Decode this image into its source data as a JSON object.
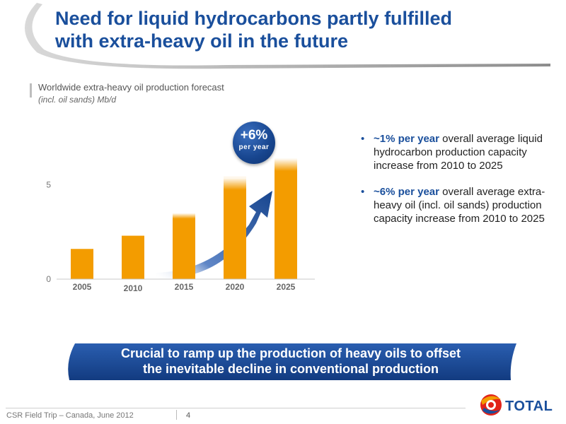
{
  "header": {
    "title_line1": "Need for liquid hydrocarbons partly fulfilled",
    "title_line2": "with extra-heavy oil in the future"
  },
  "chart_data": {
    "type": "bar",
    "title": "Worldwide extra-heavy oil production forecast",
    "subtitle": "(incl. oil sands) Mb/d",
    "categories": [
      "2005",
      "2010",
      "2015",
      "2020",
      "2025"
    ],
    "values": [
      1.6,
      2.3,
      3.5,
      5.4,
      6.4
    ],
    "y_ticks": [
      "0",
      "5"
    ],
    "ylim": [
      0,
      7
    ],
    "grid": false,
    "bar_color": "#f39c00",
    "annotation": {
      "value": "+6%",
      "unit": "per year",
      "color": "#1a4f9c"
    }
  },
  "bullets": [
    {
      "highlight": "~1% per year",
      "text": " overall average liquid hydrocarbon production capacity increase from 2010 to 2025"
    },
    {
      "highlight": "~6% per year",
      "text": " overall average extra-heavy oil (incl. oil sands) production capacity increase from 2010 to 2025"
    }
  ],
  "callout": {
    "line1": "Crucial to ramp up the production of heavy oils to offset",
    "line2": "the inevitable decline in conventional production"
  },
  "footer": {
    "text": "CSR Field Trip – Canada, June 2012",
    "page": "4"
  },
  "logo": {
    "brand": "TOTAL"
  },
  "colors": {
    "primary_blue": "#1a4f9c",
    "bar_orange": "#f39c00"
  }
}
